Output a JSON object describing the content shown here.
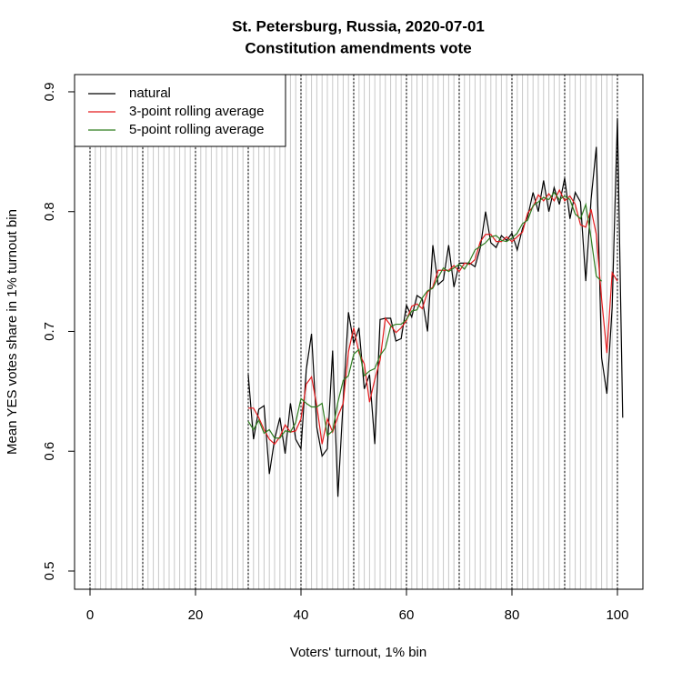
{
  "chart_data": {
    "type": "line",
    "title": "St. Petersburg, Russia, 2020-07-01",
    "subtitle": "Constitution amendments vote",
    "xlabel": "Voters' turnout, 1% bin",
    "ylabel": "Mean YES votes share in 1% turnout bin",
    "x": [
      30,
      31,
      32,
      33,
      34,
      35,
      36,
      37,
      38,
      39,
      40,
      41,
      42,
      43,
      44,
      45,
      46,
      47,
      48,
      49,
      50,
      51,
      52,
      53,
      54,
      55,
      56,
      57,
      58,
      59,
      60,
      61,
      62,
      63,
      64,
      65,
      66,
      67,
      68,
      69,
      70,
      71,
      72,
      73,
      74,
      75,
      76,
      77,
      78,
      79,
      80,
      81,
      82,
      83,
      84,
      85,
      86,
      87,
      88,
      89,
      90,
      91,
      92,
      93,
      94,
      95,
      96,
      97,
      98,
      99,
      100,
      101
    ],
    "series": [
      {
        "name": "natural",
        "color": "#000000",
        "values": [
          0.664,
          0.61,
          0.635,
          0.638,
          0.581,
          0.61,
          0.628,
          0.598,
          0.64,
          0.61,
          0.602,
          0.668,
          0.698,
          0.62,
          0.596,
          0.602,
          0.684,
          0.562,
          0.642,
          0.716,
          0.69,
          0.703,
          0.652,
          0.664,
          0.606,
          0.71,
          0.711,
          0.711,
          0.692,
          0.694,
          0.722,
          0.712,
          0.73,
          0.727,
          0.7,
          0.772,
          0.739,
          0.743,
          0.772,
          0.737,
          0.757,
          0.757,
          0.757,
          0.754,
          0.77,
          0.8,
          0.774,
          0.77,
          0.78,
          0.776,
          0.782,
          0.768,
          0.786,
          0.796,
          0.816,
          0.8,
          0.826,
          0.8,
          0.82,
          0.806,
          0.828,
          0.794,
          0.816,
          0.808,
          0.742,
          0.81,
          0.854,
          0.678,
          0.648,
          0.72,
          0.878,
          0.628
        ]
      },
      {
        "name": "3-point rolling average",
        "color": "#e41a1c",
        "values": [
          0.636,
          0.636,
          0.628,
          0.618,
          0.61,
          0.606,
          0.612,
          0.622,
          0.616,
          0.617,
          0.627,
          0.656,
          0.662,
          0.638,
          0.606,
          0.627,
          0.616,
          0.629,
          0.64,
          0.683,
          0.703,
          0.682,
          0.673,
          0.641,
          0.66,
          0.676,
          0.711,
          0.705,
          0.699,
          0.703,
          0.709,
          0.721,
          0.723,
          0.719,
          0.733,
          0.737,
          0.751,
          0.751,
          0.751,
          0.755,
          0.75,
          0.757,
          0.756,
          0.76,
          0.775,
          0.781,
          0.781,
          0.775,
          0.775,
          0.779,
          0.775,
          0.779,
          0.783,
          0.799,
          0.804,
          0.814,
          0.809,
          0.815,
          0.809,
          0.818,
          0.809,
          0.813,
          0.806,
          0.789,
          0.787,
          0.802,
          0.781,
          0.727,
          0.682,
          0.749,
          0.742,
          null
        ]
      },
      {
        "name": "5-point rolling average",
        "color": "#2e7d1f",
        "values": [
          0.625,
          0.618,
          0.626,
          0.615,
          0.618,
          0.611,
          0.611,
          0.617,
          0.616,
          0.624,
          0.644,
          0.64,
          0.637,
          0.637,
          0.64,
          0.613,
          0.617,
          0.641,
          0.659,
          0.663,
          0.681,
          0.685,
          0.663,
          0.667,
          0.669,
          0.68,
          0.686,
          0.704,
          0.706,
          0.706,
          0.71,
          0.717,
          0.718,
          0.728,
          0.734,
          0.736,
          0.745,
          0.753,
          0.75,
          0.753,
          0.756,
          0.752,
          0.759,
          0.768,
          0.771,
          0.774,
          0.779,
          0.78,
          0.776,
          0.775,
          0.778,
          0.782,
          0.79,
          0.793,
          0.805,
          0.808,
          0.812,
          0.81,
          0.816,
          0.81,
          0.813,
          0.81,
          0.798,
          0.794,
          0.806,
          0.778,
          0.746,
          0.742,
          null,
          null,
          null,
          null
        ]
      }
    ],
    "xlim": [
      -2.93,
      104.83
    ],
    "ylim": [
      0.4848,
      0.9144
    ],
    "xticks": [
      0,
      20,
      40,
      60,
      80,
      100
    ],
    "yticks": [
      0.5,
      0.6,
      0.7,
      0.8,
      0.9
    ],
    "legend": "topleft"
  }
}
